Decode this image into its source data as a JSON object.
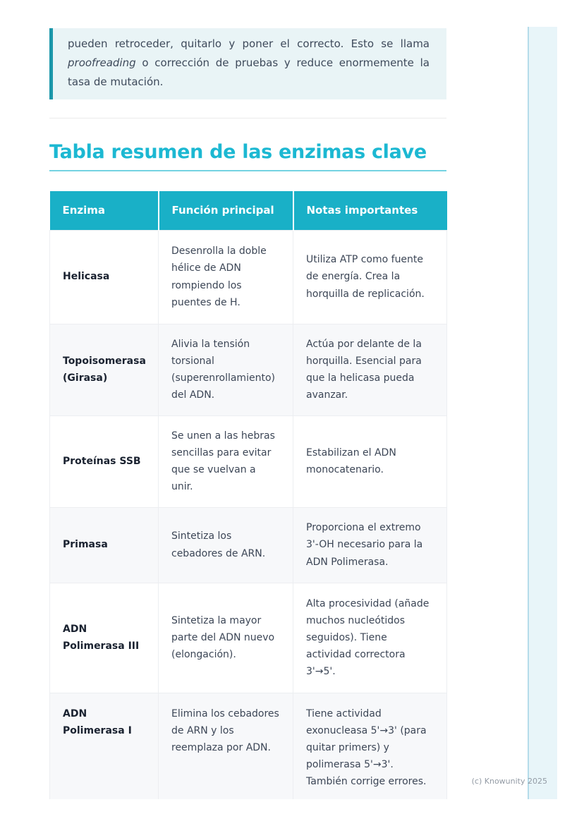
{
  "callout": {
    "pre": "pueden retroceder, quitarlo y poner el correcto. Esto se llama ",
    "italic": "proofreading",
    "post": " o corrección de pruebas y reduce enormemente la tasa de mutación."
  },
  "section": {
    "title": "Tabla resumen de las enzimas clave"
  },
  "table": {
    "headers": [
      "Enzima",
      "Función principal",
      "Notas importantes"
    ],
    "rows": [
      {
        "enzyme": "Helicasa",
        "function": "Desenrolla la doble hélice de ADN rompiendo los puentes de H.",
        "notes": "Utiliza ATP como fuente de energía. Crea la horquilla de replicación."
      },
      {
        "enzyme": "Topoisomerasa (Girasa)",
        "function": "Alivia la tensión torsional (superenrollamiento) del ADN.",
        "notes": "Actúa por delante de la horquilla. Esencial para que la helicasa pueda avanzar."
      },
      {
        "enzyme": "Proteínas SSB",
        "function": "Se unen a las hebras sencillas para evitar que se vuelvan a unir.",
        "notes": "Estabilizan el ADN monocatenario."
      },
      {
        "enzyme": "Primasa",
        "function": "Sintetiza los cebadores de ARN.",
        "notes": "Proporciona el extremo 3'-OH necesario para la ADN Polimerasa."
      },
      {
        "enzyme": "ADN Polimerasa III",
        "function": "Sintetiza la mayor parte del ADN nuevo (elongación).",
        "notes": "Alta procesividad (añade muchos nucleótidos seguidos). Tiene actividad correctora 3'→5'."
      },
      {
        "enzyme": "ADN Polimerasa I",
        "function": "Elimina los cebadores de ARN y los reemplaza por ADN.",
        "notes": "Tiene actividad exonucleasa 5'→3' (para quitar primers) y polimerasa 5'→3'. También corrige errores."
      }
    ]
  },
  "footer": {
    "watermark": "(c) Knowunity 2025"
  },
  "colors": {
    "accent_teal": "#1cb8d2",
    "table_header_bg": "#19b0c7",
    "callout_border": "#1b97aa",
    "callout_bg": "#e9f4f6",
    "title_underline": "#74d3e2",
    "edge_strip_bg": "#e8f5f9",
    "edge_strip_border": "#b5dcea",
    "body_text": "#3c4656",
    "enzyme_text": "#1a2230",
    "watermark_text": "#939ba5",
    "row_alt_bg": "#f7f8fa"
  }
}
